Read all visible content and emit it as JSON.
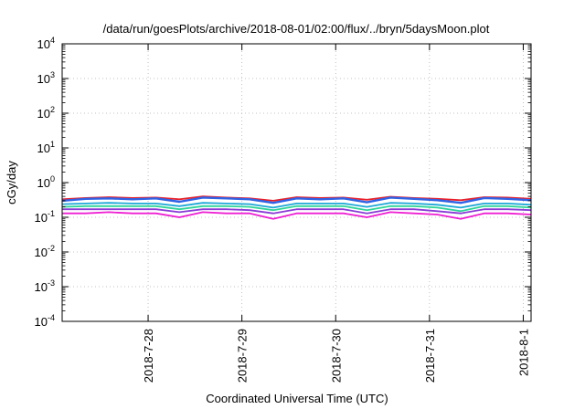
{
  "chart_data": {
    "type": "line",
    "title": "/data/run/goesPlots/archive/2018-08-01/02:00/flux/../bryn/5daysMoon.plot",
    "xlabel": "Coordinated Universal Time (UTC)",
    "ylabel": "cGy/day",
    "yscale": "log",
    "ylim": [
      0.0001,
      10000
    ],
    "xlim": [
      "2018-07-27T02:00",
      "2018-08-01T02:00"
    ],
    "x_ticks": [
      "2018-7-28",
      "2018-7-29",
      "2018-7-30",
      "2018-7-31",
      "2018-8-1"
    ],
    "y_ticks": [
      {
        "base": "10",
        "exp": "4",
        "value": 10000
      },
      {
        "base": "10",
        "exp": "3",
        "value": 1000
      },
      {
        "base": "10",
        "exp": "2",
        "value": 100
      },
      {
        "base": "10",
        "exp": "1",
        "value": 10
      },
      {
        "base": "10",
        "exp": "0",
        "value": 1
      },
      {
        "base": "10",
        "exp": "-1",
        "value": 0.1
      },
      {
        "base": "10",
        "exp": "-2",
        "value": 0.01
      },
      {
        "base": "10",
        "exp": "-3",
        "value": 0.001
      },
      {
        "base": "10",
        "exp": "-4",
        "value": 0.0001
      }
    ],
    "grid": true,
    "x": [
      "2018-07-27T02:00",
      "2018-07-27T08:00",
      "2018-07-27T14:00",
      "2018-07-27T20:00",
      "2018-07-28T02:00",
      "2018-07-28T08:00",
      "2018-07-28T14:00",
      "2018-07-28T20:00",
      "2018-07-29T02:00",
      "2018-07-29T08:00",
      "2018-07-29T14:00",
      "2018-07-29T20:00",
      "2018-07-30T02:00",
      "2018-07-30T08:00",
      "2018-07-30T14:00",
      "2018-07-30T20:00",
      "2018-07-31T02:00",
      "2018-07-31T08:00",
      "2018-07-31T14:00",
      "2018-07-31T20:00",
      "2018-08-01T02:00"
    ],
    "series": [
      {
        "color": "#e8202a",
        "values": [
          0.33,
          0.36,
          0.38,
          0.36,
          0.37,
          0.33,
          0.4,
          0.37,
          0.35,
          0.3,
          0.38,
          0.36,
          0.37,
          0.32,
          0.39,
          0.36,
          0.34,
          0.31,
          0.38,
          0.37,
          0.34
        ]
      },
      {
        "color": "#2f62e6",
        "values": [
          0.3,
          0.34,
          0.35,
          0.33,
          0.35,
          0.28,
          0.37,
          0.35,
          0.33,
          0.26,
          0.35,
          0.33,
          0.35,
          0.27,
          0.37,
          0.34,
          0.31,
          0.26,
          0.36,
          0.34,
          0.31
        ]
      },
      {
        "color": "#1fa8d8",
        "values": [
          0.24,
          0.25,
          0.26,
          0.25,
          0.25,
          0.21,
          0.26,
          0.25,
          0.24,
          0.19,
          0.25,
          0.25,
          0.25,
          0.2,
          0.26,
          0.25,
          0.23,
          0.19,
          0.25,
          0.25,
          0.23
        ]
      },
      {
        "color": "#2fd49a",
        "values": [
          0.2,
          0.21,
          0.21,
          0.21,
          0.21,
          0.17,
          0.21,
          0.21,
          0.2,
          0.16,
          0.21,
          0.21,
          0.21,
          0.16,
          0.21,
          0.21,
          0.19,
          0.15,
          0.21,
          0.21,
          0.19
        ]
      },
      {
        "color": "#8a3bd6",
        "values": [
          0.17,
          0.17,
          0.17,
          0.17,
          0.17,
          0.14,
          0.17,
          0.17,
          0.16,
          0.13,
          0.17,
          0.17,
          0.17,
          0.13,
          0.17,
          0.17,
          0.15,
          0.13,
          0.17,
          0.17,
          0.16
        ]
      },
      {
        "color": "#ee1ed2",
        "values": [
          0.13,
          0.13,
          0.14,
          0.13,
          0.13,
          0.1,
          0.14,
          0.13,
          0.13,
          0.09,
          0.13,
          0.13,
          0.13,
          0.1,
          0.14,
          0.13,
          0.12,
          0.09,
          0.13,
          0.13,
          0.12
        ]
      }
    ]
  }
}
